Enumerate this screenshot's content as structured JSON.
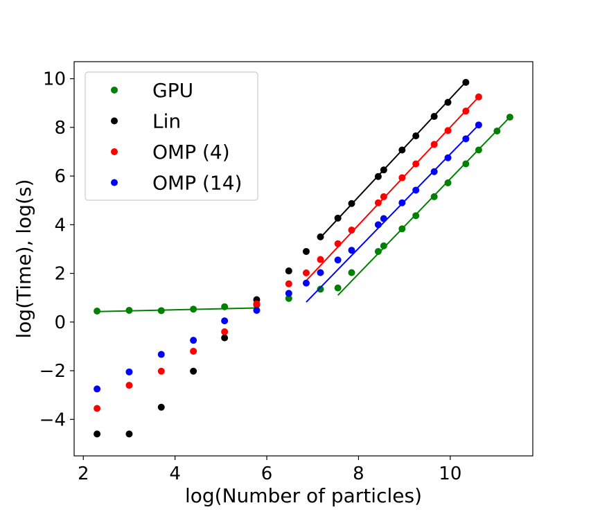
{
  "chart_data": {
    "type": "scatter",
    "title": "",
    "xlabel": "log(Number of particles)",
    "ylabel": "log(Time), log(s)",
    "xlim": [
      1.8,
      11.8
    ],
    "ylim": [
      -5.5,
      10.7
    ],
    "xticks": [
      2,
      4,
      6,
      8,
      10
    ],
    "yticks": [
      -4,
      -2,
      0,
      2,
      4,
      6,
      8,
      10
    ],
    "grid": false,
    "legend_position": "top-left",
    "series": [
      {
        "name": "GPU",
        "color": "#008000",
        "x": [
          2.3,
          3.0,
          3.7,
          4.4,
          5.08,
          5.78,
          6.48,
          7.17,
          7.55,
          7.85,
          8.43,
          8.55,
          8.95,
          9.25,
          9.65,
          9.95,
          10.34,
          10.62,
          11.02,
          11.3
        ],
        "y": [
          0.45,
          0.48,
          0.47,
          0.53,
          0.63,
          0.7,
          0.97,
          1.35,
          1.4,
          2.03,
          2.9,
          3.13,
          3.83,
          4.37,
          5.15,
          5.72,
          6.5,
          7.07,
          7.85,
          8.42
        ],
        "fit_lines": [
          {
            "x": [
              2.3,
              5.78
            ],
            "y": [
              0.43,
              0.58
            ]
          },
          {
            "x": [
              7.55,
              11.3
            ],
            "y": [
              1.1,
              8.42
            ]
          }
        ]
      },
      {
        "name": "Lin",
        "color": "#000000",
        "x": [
          2.3,
          3.0,
          3.7,
          4.4,
          5.08,
          5.78,
          6.48,
          6.86,
          7.17,
          7.55,
          7.85,
          8.43,
          8.55,
          8.95,
          9.25,
          9.65,
          9.95,
          10.34
        ],
        "y": [
          -4.6,
          -4.6,
          -3.5,
          -2.02,
          -0.65,
          0.92,
          2.1,
          2.9,
          3.5,
          4.27,
          4.87,
          5.98,
          6.25,
          7.07,
          7.65,
          8.45,
          9.03,
          9.85
        ],
        "fit_lines": [
          {
            "x": [
              7.17,
              10.34
            ],
            "y": [
              3.47,
              9.87
            ]
          }
        ]
      },
      {
        "name": "OMP (4)",
        "color": "#ff0000",
        "x": [
          2.3,
          3.0,
          3.7,
          4.4,
          5.08,
          5.78,
          6.48,
          6.86,
          7.17,
          7.55,
          7.85,
          8.43,
          8.55,
          8.95,
          9.25,
          9.65,
          9.95,
          10.34,
          10.62
        ],
        "y": [
          -3.55,
          -2.6,
          -2.02,
          -1.2,
          -0.4,
          0.75,
          1.57,
          2.02,
          2.57,
          3.22,
          3.78,
          4.9,
          5.15,
          5.93,
          6.5,
          7.3,
          7.87,
          8.67,
          9.25
        ],
        "fit_lines": [
          {
            "x": [
              6.86,
              10.62
            ],
            "y": [
              1.7,
              9.25
            ]
          }
        ]
      },
      {
        "name": "OMP (14)",
        "color": "#0000ff",
        "x": [
          2.3,
          3.0,
          3.7,
          4.4,
          5.08,
          5.78,
          6.48,
          6.86,
          7.17,
          7.55,
          7.85,
          8.43,
          8.55,
          8.95,
          9.25,
          9.65,
          9.95,
          10.34,
          10.62
        ],
        "y": [
          -2.75,
          -2.05,
          -1.33,
          -0.75,
          0.05,
          0.48,
          1.18,
          1.6,
          2.03,
          2.55,
          2.95,
          4.0,
          4.25,
          4.9,
          5.42,
          6.18,
          6.75,
          7.53,
          8.1
        ],
        "fit_lines": [
          {
            "x": [
              6.86,
              10.62
            ],
            "y": [
              0.82,
              8.1
            ]
          }
        ]
      }
    ]
  }
}
